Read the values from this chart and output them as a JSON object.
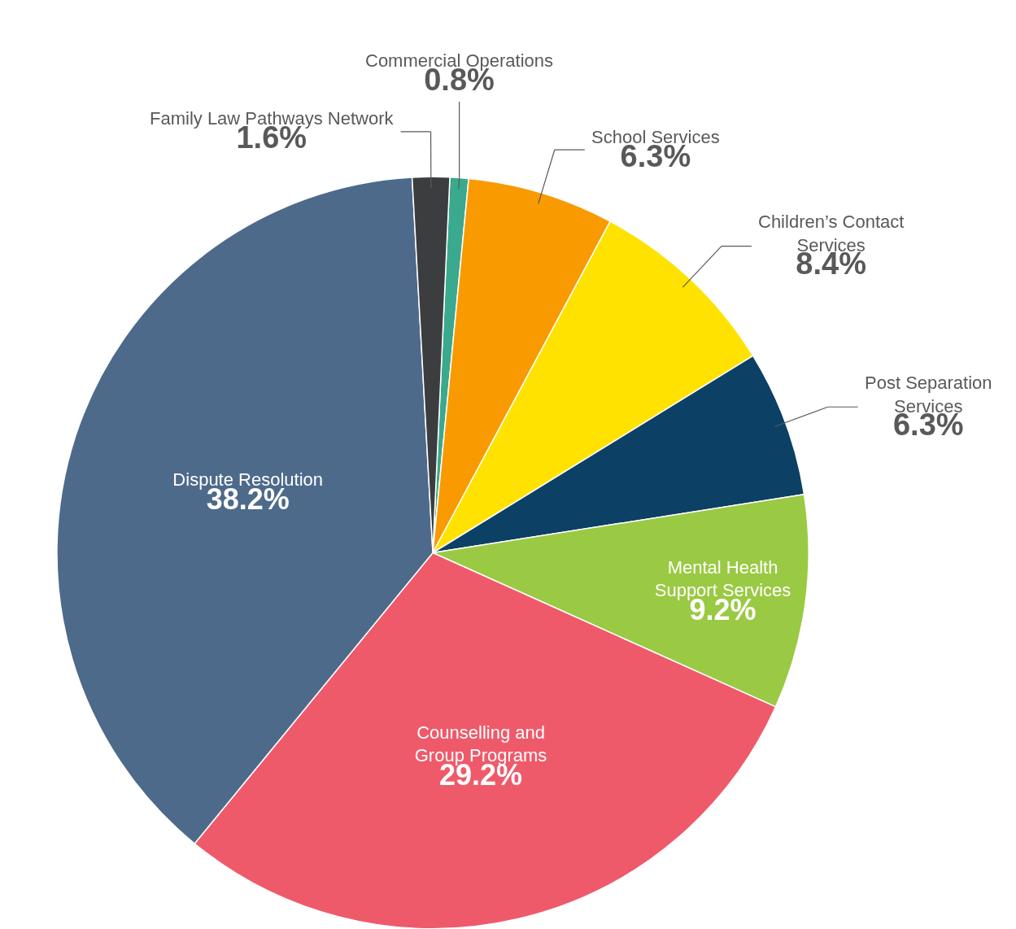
{
  "chart_data": {
    "type": "pie",
    "categories": [
      "Commercial Operations",
      "School Services",
      "Children’s Contact Services",
      "Post Separation Services",
      "Mental Health Support Services",
      "Counselling and Group Programs",
      "Dispute Resolution",
      "Family Law Pathways Network"
    ],
    "values": [
      0.8,
      6.3,
      8.4,
      6.3,
      9.2,
      29.2,
      38.2,
      1.6
    ],
    "colors": [
      "#3aa98e",
      "#f99a00",
      "#ffe200",
      "#0c4065",
      "#9ac943",
      "#ef5a6a",
      "#4d6a8b",
      "#3c3d3f"
    ],
    "value_labels": [
      "0.8%",
      "6.3%",
      "8.4%",
      "6.3%",
      "9.2%",
      "29.2%",
      "38.2%",
      "1.6%"
    ]
  }
}
